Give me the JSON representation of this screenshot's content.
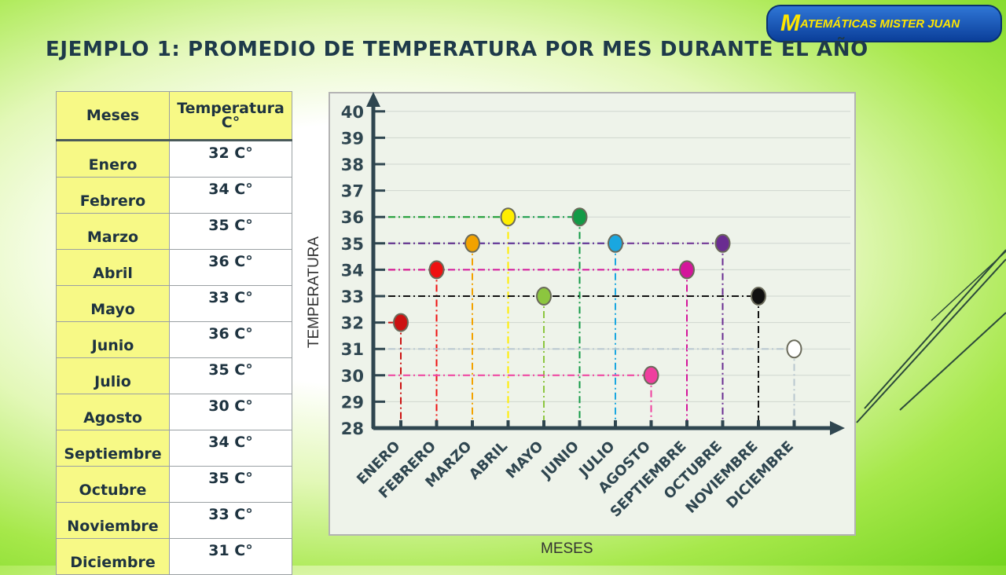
{
  "logo": {
    "mark": "M",
    "text": "ATEMÁTICAS MISTER JUAN"
  },
  "title": "EJEMPLO 1: PROMEDIO DE TEMPERATURA POR MES DURANTE EL AÑO",
  "table": {
    "headers": [
      "Meses",
      "Temperatura C°"
    ],
    "rows": [
      [
        "Enero",
        "32 C°"
      ],
      [
        "Febrero",
        "34 C°"
      ],
      [
        "Marzo",
        "35 C°"
      ],
      [
        "Abril",
        "36 C°"
      ],
      [
        "Mayo",
        "33 C°"
      ],
      [
        "Junio",
        "36 C°"
      ],
      [
        "Julio",
        "35 C°"
      ],
      [
        "Agosto",
        "30 C°"
      ],
      [
        "Septiembre",
        "34 C°"
      ],
      [
        "Octubre",
        "35 C°"
      ],
      [
        "Noviembre",
        "33 C°"
      ],
      [
        "Diciembre",
        "31 C°"
      ]
    ]
  },
  "chart_data": {
    "type": "scatter",
    "xlabel": "MESES",
    "ylabel": "TEMPERATURA",
    "ylim": [
      28,
      40
    ],
    "yticks": [
      "28",
      "29",
      "30",
      "31",
      "32",
      "33",
      "34",
      "35",
      "36",
      "37",
      "38",
      "39",
      "40"
    ],
    "categories": [
      "ENERO",
      "FEBRERO",
      "MARZO",
      "ABRIL",
      "MAYO",
      "JUNIO",
      "JULIO",
      "AGOSTO",
      "SEPTIEMBRE",
      "OCTUBRE",
      "NOVIEMBRE",
      "DICIEMBRE"
    ],
    "values": [
      32,
      34,
      35,
      36,
      33,
      36,
      35,
      30,
      34,
      35,
      33,
      31
    ],
    "colors": [
      "#cc1111",
      "#ee1111",
      "#f2a200",
      "#ffee00",
      "#8cc63f",
      "#139a46",
      "#1aa7e0",
      "#ef3f9e",
      "#d4169b",
      "#6a2c91",
      "#111111",
      "#ffffff"
    ],
    "grid": true,
    "guide_lines": true
  }
}
